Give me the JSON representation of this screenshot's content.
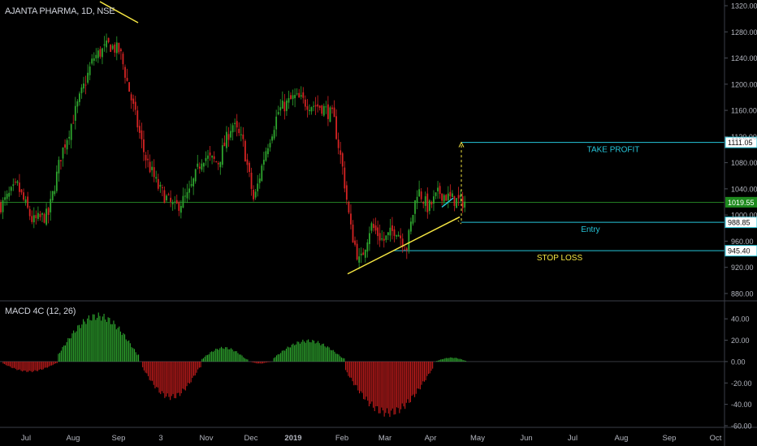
{
  "header": {
    "symbol_line": "AJANTA PHARMA, 1D, NSE"
  },
  "macd": {
    "label": "MACD 4C (12, 26)"
  },
  "colors": {
    "up": "#2ea52e",
    "down": "#d42323",
    "macd_up": "#2ea52e",
    "macd_down": "#c01c1c",
    "level_line": "#26c6da",
    "price_line": "#2ea52e",
    "trendline": "#f5e642",
    "text_cyan": "#26c6da",
    "text_yellow": "#f5e642",
    "axis_text": "#b2b5be"
  },
  "chart_data": [
    {
      "type": "candlestick",
      "title": "AJANTA PHARMA, 1D, NSE",
      "y_axis": {
        "min": 870,
        "max": 1325,
        "ticks": [
          "880.00",
          "920.00",
          "960.00",
          "1000.00",
          "1040.00",
          "1080.00",
          "1120.00",
          "1160.00",
          "1200.00",
          "1240.00",
          "1280.00",
          "1320.00"
        ]
      },
      "x_axis": {
        "labels": [
          "Jul",
          "Aug",
          "Sep",
          "3",
          "Nov",
          "Dec",
          "2019",
          "Feb",
          "Mar",
          "Apr",
          "May",
          "Jun",
          "Jul",
          "Aug",
          "Sep",
          "Oct"
        ]
      },
      "current_price": "1019.55",
      "levels": [
        {
          "name": "TAKE PROFIT",
          "value": 1111.05,
          "label": "1111.05"
        },
        {
          "name": "Entry",
          "value": 988.85,
          "label": "988.85"
        },
        {
          "name": "STOP LOSS",
          "value": 945.4,
          "label": "945.40"
        }
      ],
      "key_prices": [
        {
          "date": "2018-06-26",
          "close": 1015
        },
        {
          "date": "2018-07-06",
          "close": 1045
        },
        {
          "date": "2018-07-16",
          "close": 990
        },
        {
          "date": "2018-07-26",
          "close": 1000
        },
        {
          "date": "2018-08-03",
          "close": 1090
        },
        {
          "date": "2018-08-14",
          "close": 1170
        },
        {
          "date": "2018-08-24",
          "close": 1240
        },
        {
          "date": "2018-09-03",
          "close": 1260
        },
        {
          "date": "2018-09-10",
          "close": 1250
        },
        {
          "date": "2018-09-17",
          "close": 1180
        },
        {
          "date": "2018-09-26",
          "close": 1090
        },
        {
          "date": "2018-10-05",
          "close": 1040
        },
        {
          "date": "2018-10-15",
          "close": 1010
        },
        {
          "date": "2018-10-24",
          "close": 1030
        },
        {
          "date": "2018-11-02",
          "close": 1090
        },
        {
          "date": "2018-11-12",
          "close": 1080
        },
        {
          "date": "2018-11-21",
          "close": 1140
        },
        {
          "date": "2018-11-28",
          "close": 1110
        },
        {
          "date": "2018-12-05",
          "close": 1020
        },
        {
          "date": "2018-12-12",
          "close": 1095
        },
        {
          "date": "2018-12-21",
          "close": 1160
        },
        {
          "date": "2018-12-31",
          "close": 1180
        },
        {
          "date": "2019-01-09",
          "close": 1170
        },
        {
          "date": "2019-01-18",
          "close": 1165
        },
        {
          "date": "2019-01-25",
          "close": 1150
        },
        {
          "date": "2019-01-31",
          "close": 1070
        },
        {
          "date": "2019-02-05",
          "close": 980
        },
        {
          "date": "2019-02-11",
          "close": 925
        },
        {
          "date": "2019-02-18",
          "close": 985
        },
        {
          "date": "2019-02-26",
          "close": 960
        },
        {
          "date": "2019-03-06",
          "close": 980
        },
        {
          "date": "2019-03-13",
          "close": 950
        },
        {
          "date": "2019-03-20",
          "close": 1040
        },
        {
          "date": "2019-03-27",
          "close": 1010
        },
        {
          "date": "2019-04-03",
          "close": 1035
        },
        {
          "date": "2019-04-10",
          "close": 1025
        },
        {
          "date": "2019-04-17",
          "close": 1020
        }
      ]
    },
    {
      "type": "bar",
      "title": "MACD 4C (12, 26)",
      "y_axis": {
        "min": -60,
        "max": 50,
        "ticks": [
          "40.00",
          "20.00",
          "0.00",
          "-20.00",
          "-40.00",
          "-60.00"
        ]
      },
      "segments": [
        {
          "start": "2018-06-26",
          "end": "2018-07-31",
          "peak": -10
        },
        {
          "start": "2018-08-01",
          "end": "2018-09-21",
          "peak": 46
        },
        {
          "start": "2018-09-24",
          "end": "2018-10-31",
          "peak": -36
        },
        {
          "start": "2018-11-01",
          "end": "2018-11-30",
          "peak": 14
        },
        {
          "start": "2018-12-03",
          "end": "2018-12-14",
          "peak": -2
        },
        {
          "start": "2018-12-17",
          "end": "2019-01-31",
          "peak": 21
        },
        {
          "start": "2019-02-01",
          "end": "2019-03-29",
          "peak": -52
        },
        {
          "start": "2019-04-01",
          "end": "2019-04-20",
          "peak": 4
        }
      ]
    }
  ]
}
